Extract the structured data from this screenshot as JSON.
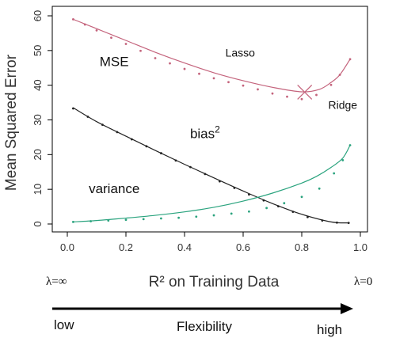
{
  "chart_data": {
    "type": "line",
    "title": "",
    "xlabel": "R² on Training Data",
    "ylabel": "Mean Squared Error",
    "xlim": [
      0,
      1
    ],
    "ylim": [
      0,
      60
    ],
    "x_ticks": [
      0.0,
      0.2,
      0.4,
      0.6,
      0.8,
      1.0
    ],
    "x_tick_labels": [
      "0.0",
      "0.2",
      "0.4",
      "0.6",
      "0.8",
      "1.0"
    ],
    "y_ticks": [
      0,
      10,
      20,
      30,
      40,
      50,
      60
    ],
    "y_tick_labels": [
      "0",
      "10",
      "20",
      "30",
      "40",
      "50",
      "60"
    ],
    "grid": false,
    "lines": [
      {
        "label": "bias²",
        "color": "#222222",
        "style": "solid",
        "x": [
          0.02,
          0.1,
          0.2,
          0.3,
          0.4,
          0.5,
          0.6,
          0.7,
          0.8,
          0.9,
          0.96
        ],
        "y": [
          33.5,
          29.5,
          25.3,
          21.2,
          17.2,
          13.3,
          9.5,
          5.9,
          2.8,
          0.6,
          0.3
        ]
      },
      {
        "label": "variance",
        "color": "#2aa37e",
        "style": "solid",
        "x": [
          0.02,
          0.1,
          0.2,
          0.3,
          0.4,
          0.5,
          0.6,
          0.7,
          0.8,
          0.85,
          0.9,
          0.94,
          0.965
        ],
        "y": [
          0.6,
          1.0,
          1.7,
          2.5,
          3.5,
          4.8,
          6.6,
          8.9,
          11.8,
          13.7,
          16.3,
          19.0,
          22.7
        ]
      },
      {
        "label": "MSE",
        "color": "#c4637c",
        "style": "solid",
        "x": [
          0.02,
          0.1,
          0.2,
          0.3,
          0.4,
          0.5,
          0.6,
          0.7,
          0.8,
          0.86,
          0.9,
          0.93,
          0.965
        ],
        "y": [
          59.0,
          56.3,
          52.9,
          49.5,
          46.4,
          43.6,
          41.3,
          39.4,
          38.1,
          38.8,
          40.8,
          43.0,
          47.5
        ]
      }
    ],
    "points": [
      {
        "label": "bias²",
        "color": "#222222",
        "x": [
          0.02,
          0.07,
          0.12,
          0.17,
          0.22,
          0.27,
          0.32,
          0.37,
          0.42,
          0.47,
          0.52,
          0.57,
          0.62,
          0.67,
          0.72,
          0.77,
          0.82,
          0.87,
          0.92,
          0.96
        ],
        "y": [
          33.3,
          30.9,
          28.6,
          26.5,
          24.4,
          22.4,
          20.4,
          18.3,
          16.4,
          14.4,
          12.3,
          10.4,
          8.5,
          6.8,
          5.1,
          3.5,
          2.0,
          1.0,
          0.4,
          0.3
        ]
      },
      {
        "label": "variance",
        "color": "#2aa37e",
        "x": [
          0.02,
          0.08,
          0.14,
          0.2,
          0.26,
          0.32,
          0.38,
          0.44,
          0.5,
          0.56,
          0.62,
          0.68,
          0.74,
          0.8,
          0.86,
          0.91,
          0.94,
          0.965
        ],
        "y": [
          0.6,
          0.8,
          1.0,
          1.2,
          1.4,
          1.6,
          1.8,
          2.1,
          2.5,
          3.0,
          3.6,
          4.6,
          6.0,
          7.8,
          10.2,
          14.6,
          18.4,
          22.7
        ]
      },
      {
        "label": "MSE",
        "color": "#c4637c",
        "x": [
          0.02,
          0.06,
          0.1,
          0.15,
          0.2,
          0.25,
          0.3,
          0.35,
          0.4,
          0.45,
          0.5,
          0.55,
          0.6,
          0.65,
          0.7,
          0.75,
          0.8,
          0.85,
          0.9,
          0.93,
          0.965
        ],
        "y": [
          59.0,
          57.5,
          55.8,
          53.7,
          51.9,
          49.9,
          47.8,
          46.3,
          44.7,
          43.3,
          42.0,
          40.9,
          39.9,
          38.8,
          37.6,
          36.7,
          36.0,
          37.2,
          40.1,
          43.0,
          47.5
        ]
      }
    ],
    "marker": {
      "x": 0.81,
      "y": 38.0,
      "color": "#c4637c",
      "shape": "x"
    },
    "annotations": [
      {
        "text": "MSE",
        "x": 0.16,
        "y": 45.5
      },
      {
        "text": "Lasso",
        "x": 0.59,
        "y": 48.3
      },
      {
        "text": "Ridge",
        "x": 0.94,
        "y": 33.2
      },
      {
        "text": "bias",
        "superscript": "2",
        "x": 0.47,
        "y": 24.8
      },
      {
        "text": "variance",
        "x": 0.16,
        "y": 8.9
      }
    ],
    "bottom_labels": {
      "lambda_left": "λ=∞",
      "lambda_right": "λ=0",
      "arrow_left": "low",
      "arrow_center": "Flexibility",
      "arrow_right": "high"
    }
  }
}
